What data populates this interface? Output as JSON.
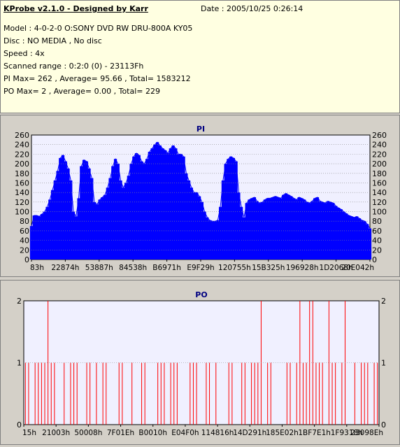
{
  "header": {
    "title": "KProbe v2.1.0 - Designed by Karr",
    "date": "Date : 2005/10/25 0:26:14",
    "model": "Model : 4-0-2-0 O:SONY    DVD RW DRU-800A  KY05",
    "disc": "Disc : NO MEDIA , No disc",
    "speed": "Speed : 4x",
    "range": "Scanned range : 0:2:0 (0) - 23113Fh",
    "pi_stats": "PI Max= 262 , Average= 95.66 , Total= 1583212",
    "po_stats": "PO Max= 2 , Average= 0.00 , Total= 229"
  },
  "colors": {
    "pi": "#0000ff",
    "po": "#ff0000",
    "plot_bg": "#f0f0ff",
    "grid": "#888888"
  },
  "chart_data": [
    {
      "type": "area",
      "title": "PI",
      "ylim": [
        0,
        260
      ],
      "yticks": [
        0,
        20,
        40,
        60,
        80,
        100,
        120,
        140,
        160,
        180,
        200,
        220,
        240,
        260
      ],
      "xtick_labels": [
        "83h",
        "22874h",
        "53887h",
        "84538h",
        "B6971h",
        "E9F29h",
        "120755h",
        "15B325h",
        "196928h",
        "1D2068h",
        "20E042h"
      ],
      "grid": true,
      "series": [
        {
          "values": [
            70,
            92,
            92,
            90,
            95,
            100,
            110,
            125,
            145,
            165,
            185,
            212,
            218,
            205,
            190,
            165,
            100,
            90,
            128,
            195,
            208,
            205,
            190,
            170,
            120,
            115,
            125,
            130,
            135,
            150,
            170,
            195,
            210,
            200,
            165,
            150,
            160,
            175,
            200,
            215,
            222,
            218,
            205,
            200,
            210,
            225,
            232,
            240,
            245,
            238,
            232,
            228,
            222,
            232,
            238,
            232,
            220,
            220,
            215,
            180,
            165,
            150,
            140,
            140,
            132,
            120,
            100,
            88,
            82,
            80,
            80,
            82,
            110,
            165,
            200,
            210,
            215,
            212,
            205,
            140,
            110,
            88,
            118,
            125,
            128,
            130,
            122,
            118,
            120,
            125,
            128,
            128,
            130,
            132,
            130,
            128,
            135,
            138,
            135,
            132,
            128,
            125,
            130,
            128,
            125,
            120,
            118,
            122,
            128,
            130,
            122,
            120,
            118,
            122,
            120,
            118,
            112,
            108,
            105,
            100,
            96,
            92,
            90,
            88,
            90,
            86,
            82,
            80,
            74,
            65
          ]
        }
      ]
    },
    {
      "type": "bar",
      "title": "PO",
      "ylim": [
        0,
        2
      ],
      "yticks": [
        0,
        1,
        2
      ],
      "xtick_labels": [
        "15h",
        "21003h",
        "50008h",
        "7F01Eh",
        "B0010h",
        "E04F0h",
        "114816h",
        "14D291h",
        "185E02h",
        "1BF7E1h",
        "1F9318h",
        "23098Eh"
      ],
      "grid": true,
      "series": [
        {
          "values": [
            1,
            1,
            0,
            1,
            1,
            1,
            1,
            2,
            1,
            1,
            0,
            0,
            1,
            0,
            1,
            1,
            1,
            0,
            0,
            1,
            1,
            0,
            1,
            0,
            1,
            1,
            0,
            0,
            0,
            1,
            1,
            0,
            0,
            1,
            0,
            0,
            1,
            1,
            0,
            0,
            0,
            1,
            1,
            1,
            0,
            1,
            1,
            1,
            0,
            0,
            0,
            1,
            1,
            1,
            0,
            0,
            1,
            1,
            0,
            1,
            0,
            0,
            0,
            1,
            1,
            0,
            0,
            1,
            1,
            0,
            1,
            1,
            1,
            2,
            0,
            1,
            1,
            0,
            0,
            0,
            0,
            1,
            1,
            0,
            1,
            2,
            1,
            1,
            2,
            2,
            1,
            1,
            1,
            0,
            2,
            1,
            1,
            0,
            1,
            2,
            0,
            0,
            1,
            0,
            1,
            1,
            1,
            0,
            1,
            1
          ]
        }
      ]
    }
  ]
}
